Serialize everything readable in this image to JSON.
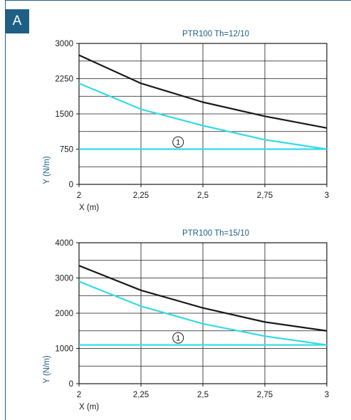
{
  "panel_label": "A",
  "colors": {
    "accent": "#1f5f86",
    "cyan": "#33dbe6",
    "black": "#1a1a1a",
    "grid": "#1a1a1a"
  },
  "chart_data": [
    {
      "type": "line",
      "title": "PTR100 Th=12/10",
      "xlabel": "X (m)",
      "ylabel": "Y (N/m)",
      "x": [
        2,
        2.25,
        2.5,
        2.75,
        3
      ],
      "x_tick_labels": [
        "2",
        "2,25",
        "2,5",
        "2,75",
        "3"
      ],
      "y_ticks": [
        0,
        750,
        1500,
        2250,
        3000
      ],
      "y_tick_labels": [
        "0",
        "750",
        "1500",
        "2250",
        "3000"
      ],
      "xlim": [
        2,
        3
      ],
      "ylim": [
        0,
        3000
      ],
      "grid": true,
      "series": [
        {
          "color": "#1a1a1a",
          "values": [
            2750,
            2150,
            1750,
            1450,
            1200
          ]
        },
        {
          "color": "#33dbe6",
          "values": [
            2150,
            1600,
            1250,
            950,
            750
          ]
        },
        {
          "color": "#33dbe6",
          "values": [
            750,
            750,
            750,
            750,
            750
          ]
        }
      ],
      "marker": {
        "text": "1",
        "x": 2.4,
        "y": 900
      }
    },
    {
      "type": "line",
      "title": "PTR100 Th=15/10",
      "xlabel": "X (m)",
      "ylabel": "Y (N/m)",
      "x": [
        2,
        2.25,
        2.5,
        2.75,
        3
      ],
      "x_tick_labels": [
        "2",
        "2,25",
        "2,5",
        "2,75",
        "3"
      ],
      "y_ticks": [
        0,
        1000,
        2000,
        3000,
        4000
      ],
      "y_tick_labels": [
        "0",
        "1000",
        "2000",
        "3000",
        "4000"
      ],
      "xlim": [
        2,
        3
      ],
      "ylim": [
        0,
        4000
      ],
      "grid": true,
      "series": [
        {
          "color": "#1a1a1a",
          "values": [
            3350,
            2650,
            2150,
            1750,
            1500
          ]
        },
        {
          "color": "#33dbe6",
          "values": [
            2900,
            2200,
            1700,
            1350,
            1100
          ]
        },
        {
          "color": "#33dbe6",
          "values": [
            1100,
            1100,
            1100,
            1100,
            1100
          ]
        }
      ],
      "marker": {
        "text": "1",
        "x": 2.4,
        "y": 1300
      }
    }
  ]
}
